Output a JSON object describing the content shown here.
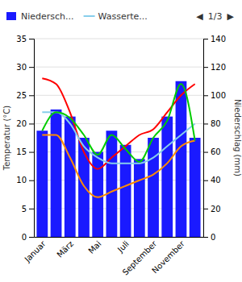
{
  "chart_data": {
    "type": "bar",
    "categories": [
      "Januar",
      null,
      "März",
      null,
      "Mai",
      null,
      "Juli",
      null,
      "September",
      null,
      "November",
      null
    ],
    "series": [
      {
        "name": "Niedersch...",
        "type": "bar",
        "color": "#1a1aff",
        "axis": "y2",
        "values": [
          75,
          90,
          85,
          70,
          60,
          75,
          65,
          55,
          70,
          85,
          110,
          70
        ]
      },
      {
        "type": "line",
        "color": "#ff0000",
        "values": [
          28,
          27,
          22,
          15,
          12,
          14,
          16,
          18,
          19,
          22,
          25,
          27
        ]
      },
      {
        "type": "line",
        "color": "#ff8c00",
        "values": [
          18,
          18,
          14,
          9,
          7,
          8,
          9,
          10,
          11,
          13,
          16,
          17
        ]
      },
      {
        "name": "Wasserte...",
        "type": "line",
        "color": "#87ceeb",
        "values": [
          22,
          22,
          20,
          16,
          14,
          13,
          13,
          13,
          14,
          16,
          18,
          20
        ]
      },
      {
        "type": "line",
        "color": "#00cc00",
        "axis": "y2",
        "values": [
          75,
          88,
          84,
          72,
          58,
          72,
          62,
          53,
          70,
          82,
          108,
          68
        ]
      }
    ],
    "y_label": "Temperatur (°C)",
    "y2_label": "Niederschlag (mm)",
    "ylim": [
      0,
      35
    ],
    "yticks": [
      0,
      5,
      10,
      15,
      20,
      25,
      30,
      35
    ],
    "y2lim": [
      0,
      140
    ],
    "y2ticks": [
      0,
      20,
      40,
      60,
      80,
      100,
      120,
      140
    ],
    "grid": true,
    "legend": "top",
    "annotations": [
      "◀",
      "1/3",
      "▶"
    ]
  }
}
